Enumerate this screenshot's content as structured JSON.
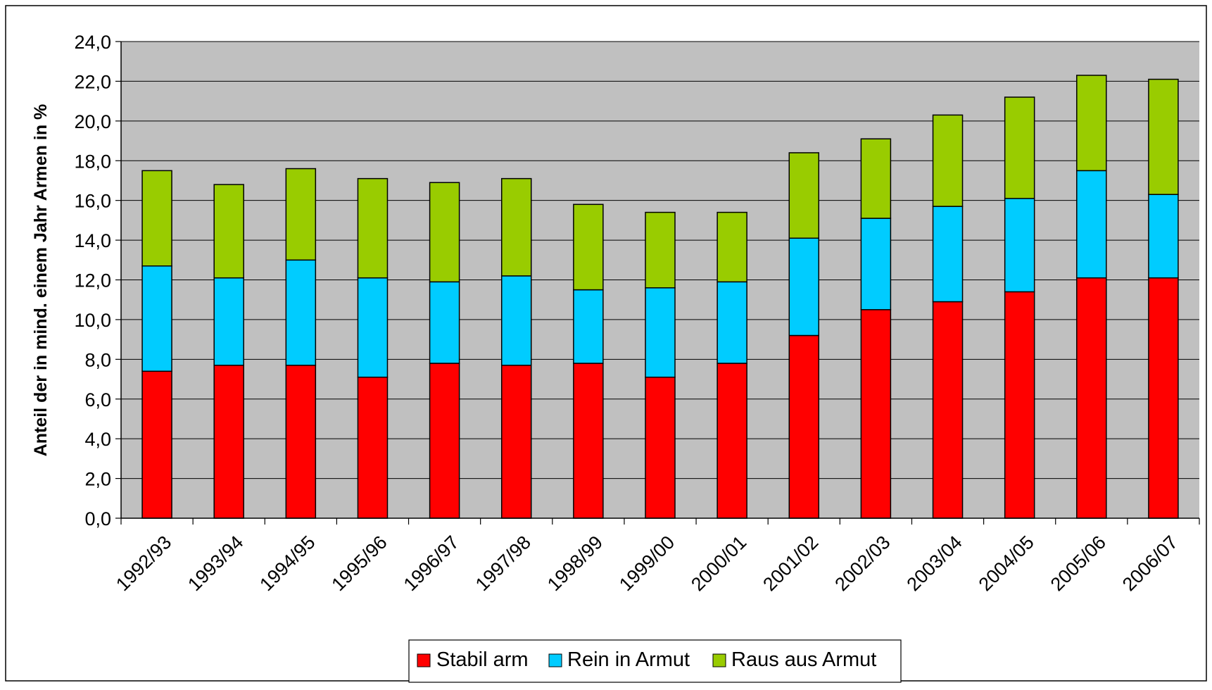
{
  "chart_data": {
    "type": "bar",
    "stacked": true,
    "title": "",
    "xlabel": "",
    "ylabel": "Anteil der in mind. einem Jahr Armen in %",
    "ylim": [
      0,
      24
    ],
    "ytick_step": 2,
    "ytick_labels": [
      "0,0",
      "2,0",
      "4,0",
      "6,0",
      "8,0",
      "10,0",
      "12,0",
      "14,0",
      "16,0",
      "18,0",
      "20,0",
      "22,0",
      "24,0"
    ],
    "grid": true,
    "plot_background": "#c0c0c0",
    "legend_position": "bottom-center",
    "categories": [
      "1992/93",
      "1993/94",
      "1994/95",
      "1995/96",
      "1996/97",
      "1997/98",
      "1998/99",
      "1999/00",
      "2000/01",
      "2001/02",
      "2002/03",
      "2003/04",
      "2004/05",
      "2005/06",
      "2006/07"
    ],
    "series": [
      {
        "name": "Stabil arm",
        "color": "#ff0000",
        "values": [
          7.4,
          7.7,
          7.7,
          7.1,
          7.8,
          7.7,
          7.8,
          7.1,
          7.8,
          9.2,
          10.5,
          10.9,
          11.4,
          12.1,
          12.1
        ]
      },
      {
        "name": "Rein in Armut",
        "color": "#00ccff",
        "values": [
          5.3,
          4.4,
          5.3,
          5.0,
          4.1,
          4.5,
          3.7,
          4.5,
          4.1,
          4.9,
          4.6,
          4.8,
          4.7,
          5.4,
          4.2
        ]
      },
      {
        "name": "Raus aus Armut",
        "color": "#99cc00",
        "values": [
          4.8,
          4.7,
          4.6,
          5.0,
          5.0,
          4.9,
          4.3,
          3.8,
          3.5,
          4.3,
          4.0,
          4.6,
          5.1,
          4.8,
          5.8
        ]
      }
    ]
  }
}
